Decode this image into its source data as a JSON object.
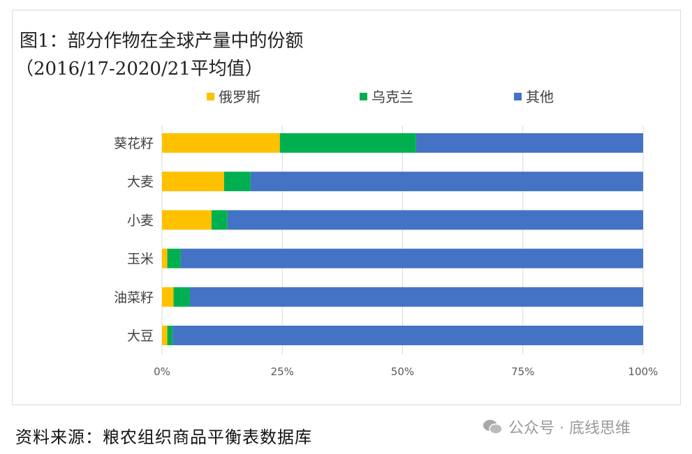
{
  "chart_data": {
    "type": "bar",
    "orientation": "horizontal",
    "stacked": "percent",
    "title": "图1：部分作物在全球产量中的份额",
    "subtitle": "（2016/17-2020/21平均值）",
    "categories": [
      "葵花籽",
      "大麦",
      "小麦",
      "玉米",
      "油菜籽",
      "大豆"
    ],
    "series": [
      {
        "name": "俄罗斯",
        "color": "#FFC000",
        "values": [
          24.5,
          12.9,
          10.3,
          1.1,
          2.4,
          1.1
        ]
      },
      {
        "name": "乌克兰",
        "color": "#00B050",
        "values": [
          28.3,
          5.5,
          3.3,
          2.8,
          3.4,
          1.1
        ]
      },
      {
        "name": "其他",
        "color": "#4472C4",
        "values": [
          47.2,
          81.6,
          86.4,
          96.1,
          94.2,
          97.8
        ]
      }
    ],
    "xlim": [
      0,
      100
    ],
    "xticks": [
      "0%",
      "25%",
      "50%",
      "75%",
      "100%"
    ],
    "grid": true,
    "legend": "top"
  },
  "footer": {
    "source": "资料来源：粮农组织商品平衡表数据库",
    "watermark": "公众号 · 底线思维",
    "watermark_icon": "wechat-icon"
  }
}
